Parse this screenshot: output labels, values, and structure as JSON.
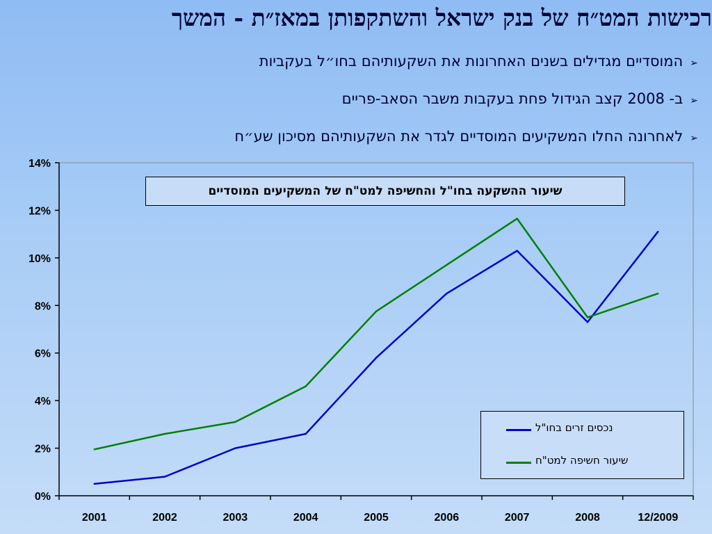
{
  "slide": {
    "title": "רכישות המט״ח של בנק ישראל והשתקפותן במאז״ת - המשך",
    "bullets": [
      "המוסדיים מגדילים בשנים האחרונות את השקעותיהם בחו״ל בעקביות",
      "ב- 2008 קצב הגידול פחת בעקבות משבר הסאב-פריים",
      "לאחרונה החלו המשקיעים המוסדיים לגדר את השקעותיהם מסיכון שע״ח"
    ],
    "bullet_icon": "arrow-bullet-icon"
  },
  "chart_data": {
    "type": "line",
    "title": "שיעור ההשקעה בחו\"ל והחשיפה למט\"ח של המשקיעים המוסדיים",
    "categories": [
      "2001",
      "2002",
      "2003",
      "2004",
      "2005",
      "2006",
      "2007",
      "2008",
      "12/2009"
    ],
    "yticks": [
      "0%",
      "2%",
      "4%",
      "6%",
      "8%",
      "10%",
      "12%",
      "14%"
    ],
    "ylim": [
      0,
      14
    ],
    "series": [
      {
        "name": "נכסים זרים בחו\"ל",
        "color": "#0000cc",
        "values": [
          0.5,
          0.8,
          2.0,
          2.6,
          5.8,
          8.5,
          10.3,
          7.3,
          11.1
        ]
      },
      {
        "name": "שיעור חשיפה למט\"ח",
        "color": "#008000",
        "values": [
          1.95,
          2.6,
          3.1,
          4.6,
          7.75,
          9.7,
          11.65,
          7.5,
          8.5
        ]
      }
    ],
    "grid": "horizontal",
    "legend_position": "bottom-right"
  }
}
